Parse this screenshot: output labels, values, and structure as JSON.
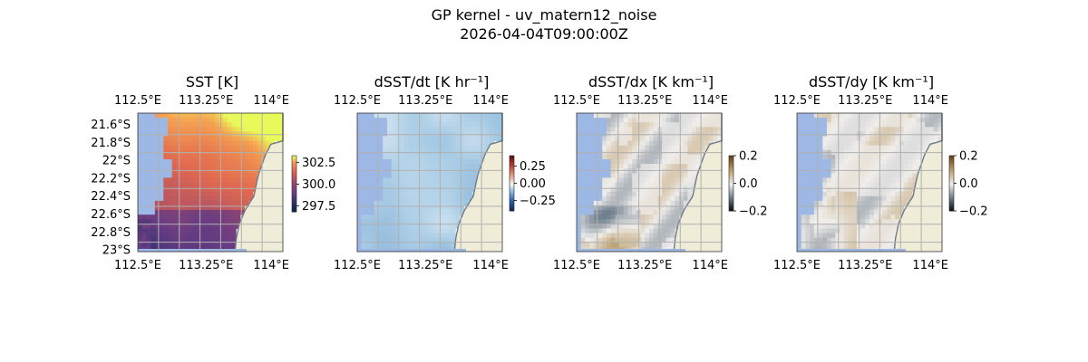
{
  "figure": {
    "title_line1": "GP kernel - uv_matern12_noise",
    "title_line2": "2026-04-04T09:00:00Z"
  },
  "colors": {
    "ocean_mask": "#9db8e4",
    "land": "#efecd8",
    "coast": "#6e7a8a",
    "grid": "#b0b0b0"
  },
  "chart_data": [
    {
      "type": "heatmap",
      "title": "SST [K]",
      "field": "sst",
      "colormap": "thermal",
      "lon_ticks": [
        "112.5°E",
        "113.25°E",
        "114°E"
      ],
      "lat_ticks": [
        "21.6°S",
        "21.8°S",
        "22°S",
        "22.2°S",
        "22.4°S",
        "22.6°S",
        "22.8°S",
        "23°S"
      ],
      "colorbar": {
        "ticks": [
          "302.5",
          "300.0",
          "297.5"
        ],
        "range": [
          296.8,
          303.3
        ]
      },
      "grid": true
    },
    {
      "type": "heatmap",
      "title": "dSST/dt [K hr⁻¹]",
      "field": "dt",
      "colormap": "diverging-blue-red",
      "lon_ticks": [
        "112.5°E",
        "113.25°E",
        "114°E"
      ],
      "colorbar": {
        "ticks": [
          "0.25",
          "0.00",
          "−0.25"
        ],
        "range": [
          -0.4,
          0.4
        ]
      },
      "grid": true
    },
    {
      "type": "heatmap",
      "title": "dSST/dx [K km⁻¹]",
      "field": "dx",
      "colormap": "diverging-black-white-brown",
      "lon_ticks": [
        "112.5°E",
        "113.25°E",
        "114°E"
      ],
      "colorbar": {
        "ticks": [
          "0.2",
          "0.0",
          "−0.2"
        ],
        "range": [
          -0.2,
          0.2
        ]
      },
      "grid": true
    },
    {
      "type": "heatmap",
      "title": "dSST/dy [K km⁻¹]",
      "field": "dy",
      "colormap": "diverging-black-white-brown",
      "lon_ticks": [
        "112.5°E",
        "113.25°E",
        "114°E"
      ],
      "colorbar": {
        "ticks": [
          "0.2",
          "0.0",
          "−0.2"
        ],
        "range": [
          -0.2,
          0.2
        ]
      },
      "grid": true
    }
  ]
}
